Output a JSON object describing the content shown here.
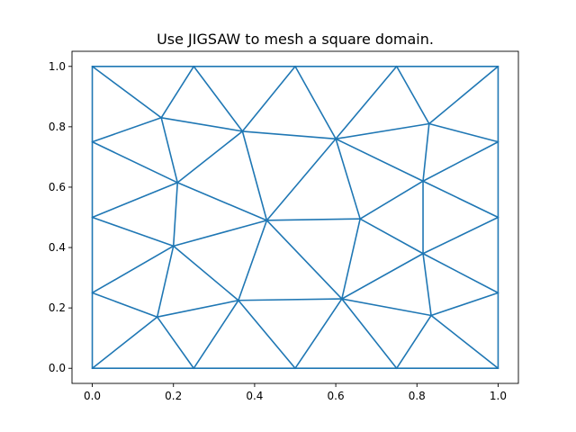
{
  "chart_data": {
    "type": "line",
    "title": "Use JIGSAW to mesh a square domain.",
    "xlabel": "",
    "ylabel": "",
    "xlim": [
      -0.05,
      1.05
    ],
    "ylim": [
      -0.05,
      1.05
    ],
    "grid": false,
    "x_ticks": [
      "0.0",
      "0.2",
      "0.4",
      "0.6",
      "0.8",
      "1.0"
    ],
    "y_ticks": [
      "0.0",
      "0.2",
      "0.4",
      "0.6",
      "0.8",
      "1.0"
    ],
    "x_tick_values": [
      0.0,
      0.2,
      0.4,
      0.6,
      0.8,
      1.0
    ],
    "y_tick_values": [
      0.0,
      0.2,
      0.4,
      0.6,
      0.8,
      1.0
    ],
    "color": "#1f77b4",
    "nodes": [
      [
        0.0,
        0.0
      ],
      [
        0.25,
        0.0
      ],
      [
        0.5,
        0.0
      ],
      [
        0.75,
        0.0
      ],
      [
        1.0,
        0.0
      ],
      [
        0.0,
        0.25
      ],
      [
        0.0,
        0.5
      ],
      [
        0.0,
        0.75
      ],
      [
        0.0,
        1.0
      ],
      [
        0.25,
        1.0
      ],
      [
        0.5,
        1.0
      ],
      [
        0.75,
        1.0
      ],
      [
        1.0,
        1.0
      ],
      [
        1.0,
        0.25
      ],
      [
        1.0,
        0.5
      ],
      [
        1.0,
        0.75
      ],
      [
        0.16,
        0.17
      ],
      [
        0.36,
        0.225
      ],
      [
        0.615,
        0.23
      ],
      [
        0.835,
        0.175
      ],
      [
        0.2,
        0.405
      ],
      [
        0.43,
        0.49
      ],
      [
        0.66,
        0.495
      ],
      [
        0.815,
        0.38
      ],
      [
        0.21,
        0.615
      ],
      [
        0.815,
        0.62
      ],
      [
        0.17,
        0.83
      ],
      [
        0.37,
        0.785
      ],
      [
        0.6,
        0.76
      ],
      [
        0.83,
        0.81
      ]
    ],
    "edges": [
      [
        0,
        1
      ],
      [
        1,
        2
      ],
      [
        2,
        3
      ],
      [
        3,
        4
      ],
      [
        0,
        5
      ],
      [
        5,
        6
      ],
      [
        6,
        7
      ],
      [
        7,
        8
      ],
      [
        8,
        9
      ],
      [
        9,
        10
      ],
      [
        10,
        11
      ],
      [
        11,
        12
      ],
      [
        4,
        13
      ],
      [
        13,
        14
      ],
      [
        14,
        15
      ],
      [
        15,
        12
      ],
      [
        0,
        16
      ],
      [
        1,
        16
      ],
      [
        5,
        16
      ],
      [
        1,
        17
      ],
      [
        16,
        17
      ],
      [
        2,
        17
      ],
      [
        2,
        18
      ],
      [
        17,
        18
      ],
      [
        3,
        18
      ],
      [
        3,
        19
      ],
      [
        18,
        19
      ],
      [
        4,
        19
      ],
      [
        13,
        19
      ],
      [
        5,
        20
      ],
      [
        16,
        20
      ],
      [
        17,
        20
      ],
      [
        6,
        20
      ],
      [
        17,
        21
      ],
      [
        18,
        21
      ],
      [
        20,
        21
      ],
      [
        18,
        22
      ],
      [
        21,
        22
      ],
      [
        18,
        23
      ],
      [
        19,
        23
      ],
      [
        22,
        23
      ],
      [
        13,
        23
      ],
      [
        14,
        23
      ],
      [
        6,
        24
      ],
      [
        7,
        24
      ],
      [
        20,
        24
      ],
      [
        21,
        24
      ],
      [
        22,
        25
      ],
      [
        23,
        25
      ],
      [
        14,
        25
      ],
      [
        15,
        25
      ],
      [
        7,
        26
      ],
      [
        8,
        26
      ],
      [
        9,
        26
      ],
      [
        24,
        26
      ],
      [
        9,
        27
      ],
      [
        10,
        27
      ],
      [
        24,
        27
      ],
      [
        26,
        27
      ],
      [
        21,
        27
      ],
      [
        27,
        28
      ],
      [
        10,
        28
      ],
      [
        21,
        28
      ],
      [
        22,
        28
      ],
      [
        25,
        28
      ],
      [
        11,
        28
      ],
      [
        11,
        29
      ],
      [
        12,
        29
      ],
      [
        15,
        29
      ],
      [
        28,
        29
      ],
      [
        25,
        29
      ]
    ]
  }
}
